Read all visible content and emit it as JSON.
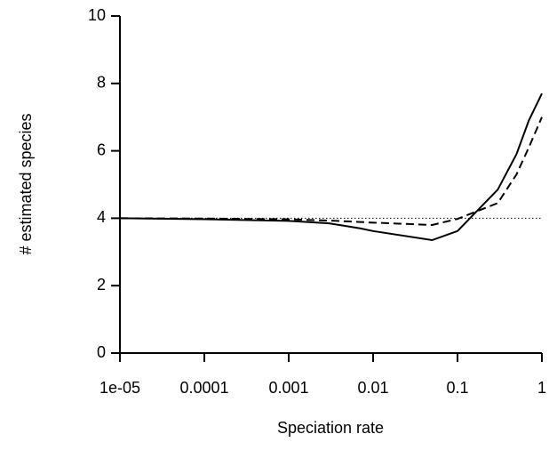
{
  "chart_data": {
    "type": "line",
    "xlabel": "Speciation rate",
    "ylabel": "# estimated species",
    "x": [
      1e-05,
      0.0001,
      0.001,
      0.003,
      0.007,
      0.01,
      0.05,
      0.1,
      0.3,
      0.5,
      0.7,
      1
    ],
    "series": [
      {
        "color": "#000000",
        "style": "solid",
        "values": [
          4.0,
          3.97,
          3.92,
          3.85,
          3.7,
          3.62,
          3.35,
          3.62,
          4.85,
          5.9,
          6.9,
          7.7
        ]
      },
      {
        "color": "#000000",
        "style": "dashed",
        "values": [
          4.0,
          3.99,
          3.97,
          3.93,
          3.89,
          3.87,
          3.8,
          3.98,
          4.45,
          5.3,
          6.1,
          7.0
        ]
      }
    ],
    "hline": 4,
    "xscale": "log",
    "xlim": [
      1e-05,
      1
    ],
    "xticks": [
      {
        "value": 1e-05,
        "label": "1e-05"
      },
      0.0001,
      0.001,
      0.01,
      0.1,
      1
    ],
    "ylim": [
      0,
      10
    ],
    "yticks": [
      0,
      2,
      4,
      6,
      8,
      10
    ]
  }
}
